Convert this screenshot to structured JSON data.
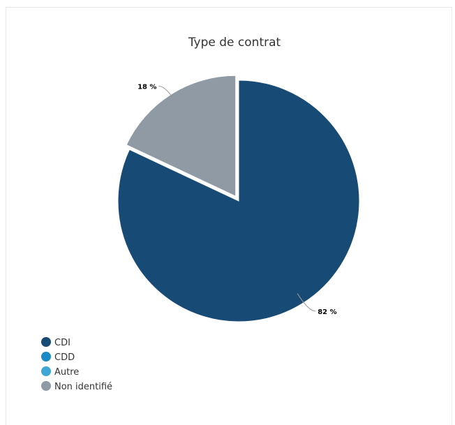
{
  "chart_data": {
    "type": "pie",
    "title": "Type de contrat",
    "categories": [
      "CDI",
      "CDD",
      "Autre",
      "Non identifié"
    ],
    "values": [
      82,
      0,
      0,
      18
    ],
    "data_labels": [
      "82 %",
      "",
      "",
      "18 %"
    ],
    "unit": "%",
    "legend_position": "bottom-left",
    "colors": [
      "#174a75",
      "#1a8ac6",
      "#3fa7d6",
      "#8f9aa4"
    ],
    "exploded_slice": "Non identifié"
  }
}
